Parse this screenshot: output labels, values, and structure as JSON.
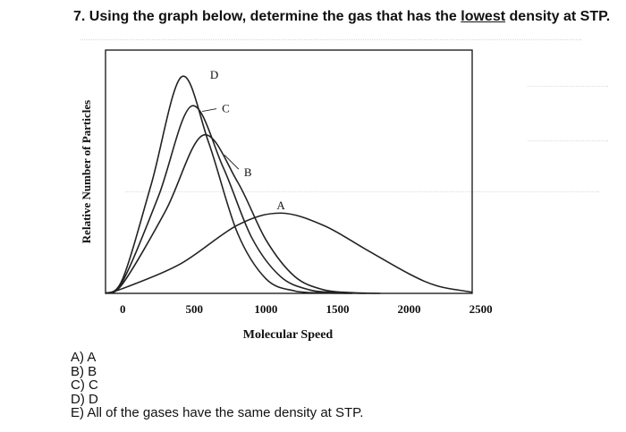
{
  "question": {
    "prefix": "7. Using the graph below, determine the gas that has the",
    "emphasis": "lowest",
    "suffix": "density at STP."
  },
  "answers": [
    {
      "letter": "A)",
      "text": "A"
    },
    {
      "letter": "B)",
      "text": "B"
    },
    {
      "letter": "C)",
      "text": "C"
    },
    {
      "letter": "D)",
      "text": "D"
    },
    {
      "letter": "E)",
      "text": "All of the gases have the same density at STP."
    }
  ],
  "chart_data": {
    "type": "line",
    "title": "",
    "xlabel": "Molecular Speed",
    "ylabel": "Relative Number of Particles",
    "xlim": [
      -120,
      2440
    ],
    "ylim": [
      0,
      1
    ],
    "xticks": [
      0,
      500,
      1000,
      1500,
      2000,
      2500
    ],
    "grid": false,
    "legend": "curve labels",
    "colors": {
      "line": "#222222",
      "axes": "#111111",
      "ghost_text": "#c9c9c9"
    },
    "series": [
      {
        "name": "D",
        "mode_x": 410,
        "peak_y": 0.89,
        "x": [
          -120,
          0,
          200,
          410,
          600,
          800,
          1000,
          1200,
          1400,
          1600
        ],
        "y": [
          0,
          0.06,
          0.45,
          0.89,
          0.62,
          0.25,
          0.06,
          0.01,
          0.002,
          0
        ]
      },
      {
        "name": "C",
        "mode_x": 480,
        "peak_y": 0.77,
        "x": [
          -120,
          0,
          250,
          480,
          700,
          900,
          1100,
          1300,
          1500,
          1700
        ],
        "y": [
          0,
          0.05,
          0.4,
          0.77,
          0.52,
          0.23,
          0.07,
          0.015,
          0.003,
          0
        ]
      },
      {
        "name": "B",
        "mode_x": 560,
        "peak_y": 0.65,
        "x": [
          -120,
          0,
          300,
          560,
          800,
          1000,
          1200,
          1400,
          1600,
          1800
        ],
        "y": [
          0,
          0.04,
          0.34,
          0.65,
          0.46,
          0.22,
          0.07,
          0.015,
          0.003,
          0
        ]
      },
      {
        "name": "A",
        "mode_x": 1100,
        "peak_y": 0.33,
        "x": [
          -120,
          0,
          400,
          800,
          1100,
          1400,
          1700,
          2000,
          2200,
          2440
        ],
        "y": [
          0,
          0.02,
          0.12,
          0.28,
          0.33,
          0.28,
          0.18,
          0.08,
          0.03,
          0.005
        ]
      }
    ]
  }
}
